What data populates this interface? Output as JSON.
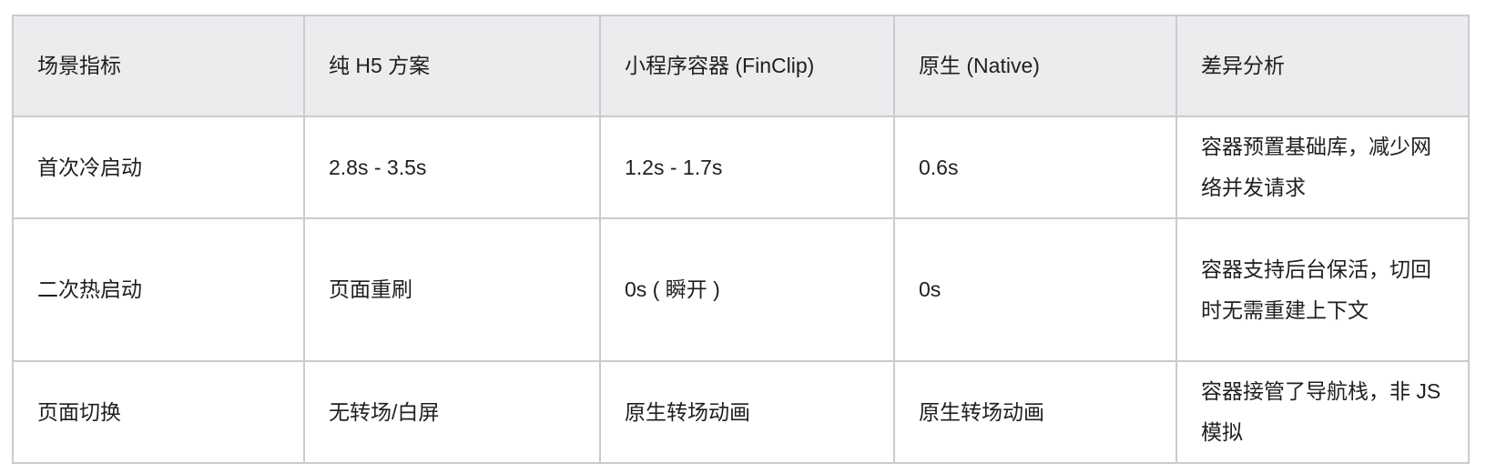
{
  "headers": [
    "场景指标",
    "纯 H5 方案",
    "小程序容器 (FinClip)",
    "原生 (Native)",
    "差异分析"
  ],
  "rows": [
    [
      "首次冷启动",
      "2.8s - 3.5s",
      "1.2s - 1.7s",
      "0.6s",
      "容器预置基础库，减少网络并发请求"
    ],
    [
      "二次热启动",
      "页面重刷",
      "0s ( 瞬开 )",
      "0s",
      "容器支持后台保活，切回时无需重建上下文"
    ],
    [
      "页面切换",
      "无转场/白屏",
      "原生转场动画",
      "原生转场动画",
      "容器接管了导航栈，非 JS 模拟"
    ]
  ]
}
